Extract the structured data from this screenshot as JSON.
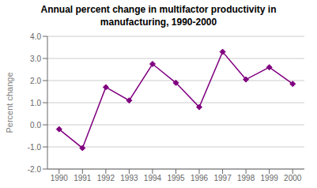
{
  "chart_data": {
    "type": "line",
    "title": "Annual percent change in multifactor productivity in\nmanufacturing, 1990-2000",
    "y_label": "Percent change",
    "x": [
      1990,
      1991,
      1992,
      1993,
      1994,
      1995,
      1996,
      1997,
      1998,
      1999,
      2000
    ],
    "values": [
      -0.2,
      -1.05,
      1.7,
      1.1,
      2.75,
      1.9,
      0.8,
      3.3,
      2.05,
      2.6,
      1.85
    ],
    "color": "#800080",
    "marker": "diamond",
    "xlim": [
      1989.5,
      2000.5
    ],
    "xticks": [
      1990,
      1991,
      1992,
      1993,
      1994,
      1995,
      1996,
      1997,
      1998,
      1999,
      2000
    ],
    "ylim": [
      -2.0,
      4.0
    ],
    "yticks": [
      {
        "value": -2.0,
        "label": "-2.0"
      },
      {
        "value": -1.0,
        "label": "-1.0"
      },
      {
        "value": 0.0,
        "label": "0.0"
      },
      {
        "value": 1.0,
        "label": "1.0"
      },
      {
        "value": 2.0,
        "label": "2.0"
      },
      {
        "value": 3.0,
        "label": "3.0"
      },
      {
        "value": 4.0,
        "label": "4.0"
      }
    ],
    "grid": "y"
  }
}
